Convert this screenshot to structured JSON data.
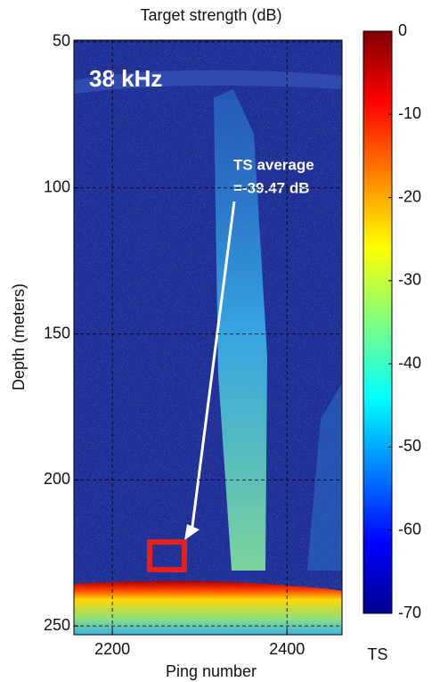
{
  "chart_data": {
    "type": "heatmap",
    "title": "Target strength (dB)",
    "x_label": "Ping number",
    "y_label": "Depth (meters)",
    "xlim": [
      2156,
      2463
    ],
    "xticks": [
      2200,
      2400
    ],
    "ylim": [
      49.4,
      253
    ],
    "yticks": [
      50,
      100,
      150,
      200,
      250
    ],
    "grid": true,
    "colorbar": {
      "label": "TS",
      "lim": [
        0,
        -70
      ],
      "ticks": [
        0,
        -10,
        -20,
        -30,
        -40,
        -50,
        -60,
        -70
      ],
      "colormap": "jet"
    },
    "annotations": {
      "frequency": "38 kHz",
      "ts_label": "TS average",
      "ts_value": "=-39.47 dB"
    }
  }
}
